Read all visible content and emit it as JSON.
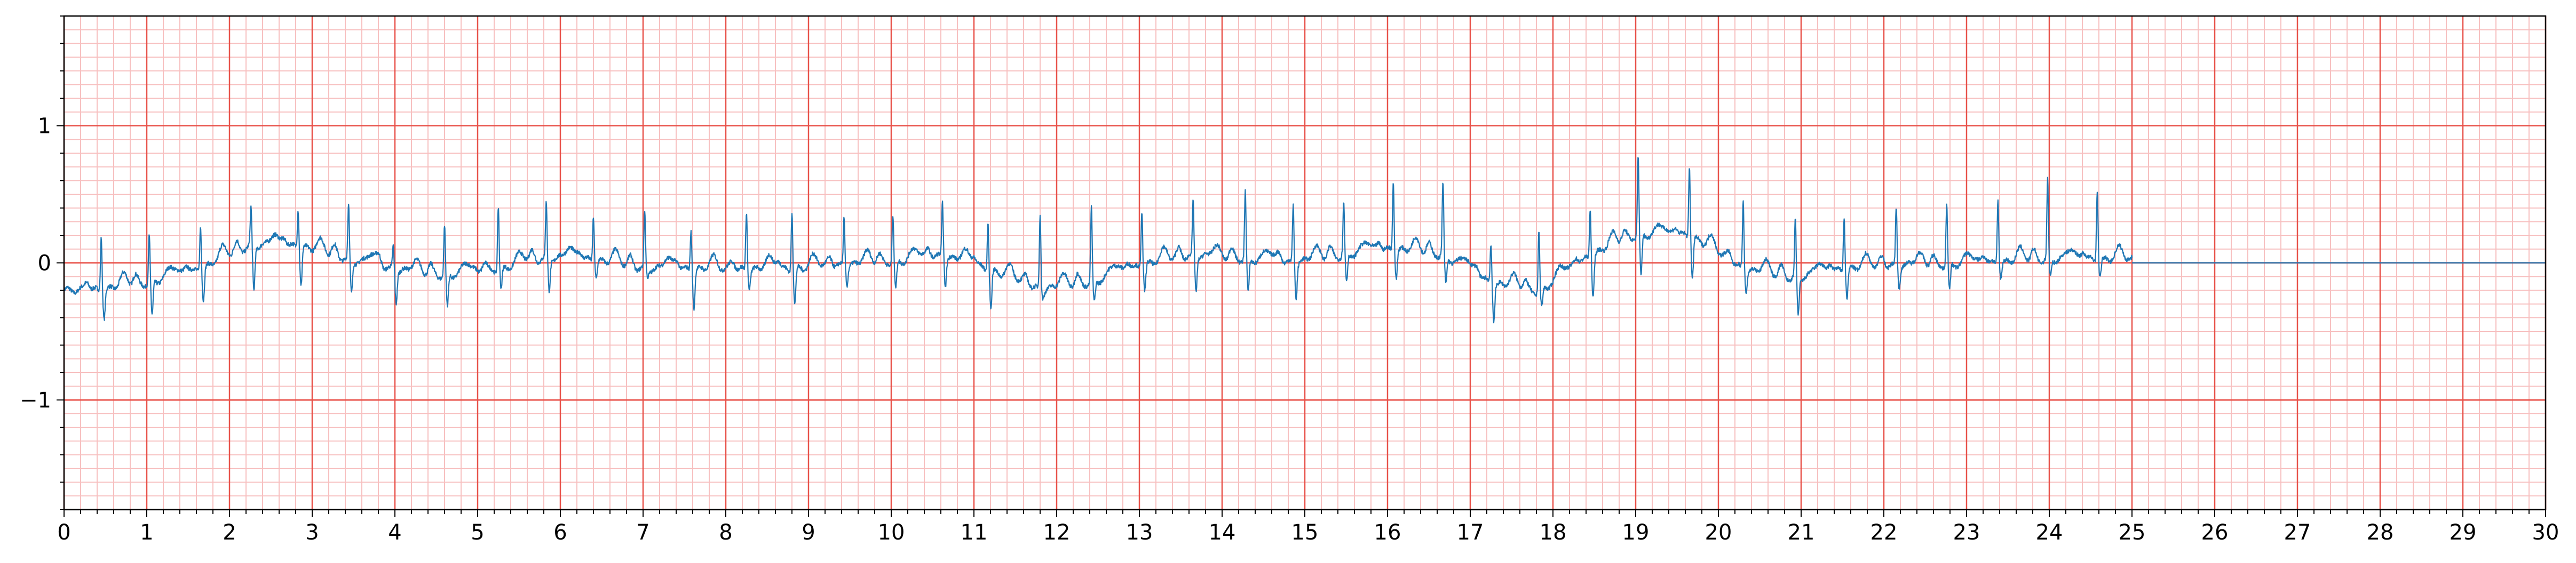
{
  "chart_data": {
    "type": "line",
    "title": "",
    "xlabel": "",
    "ylabel": "",
    "xlim": [
      0,
      30
    ],
    "ylim": [
      -1.8,
      1.8
    ],
    "x_ticks": [
      0,
      1,
      2,
      3,
      4,
      5,
      6,
      7,
      8,
      9,
      10,
      11,
      12,
      13,
      14,
      15,
      16,
      17,
      18,
      19,
      20,
      21,
      22,
      23,
      24,
      25,
      26,
      27,
      28,
      29,
      30
    ],
    "x_tick_labels": [
      "0",
      "1",
      "2",
      "3",
      "4",
      "5",
      "6",
      "7",
      "8",
      "9",
      "10",
      "11",
      "12",
      "13",
      "14",
      "15",
      "16",
      "17",
      "18",
      "19",
      "20",
      "21",
      "22",
      "23",
      "24",
      "25",
      "26",
      "27",
      "28",
      "29",
      "30"
    ],
    "y_ticks": [
      -1,
      0,
      1
    ],
    "y_tick_labels": [
      "−1",
      "0",
      "1"
    ],
    "grid": true,
    "grid_major_x_step": 1.0,
    "grid_minor_x_step": 0.2,
    "grid_major_y_step": 1.0,
    "grid_minor_y_step": 0.1,
    "colors": {
      "trace": "#1f77b4",
      "grid_major": "#e8524a",
      "grid_minor": "#f7c0c0",
      "axes": "#000000"
    },
    "signal_end": 25.0,
    "flat_until": 30.0,
    "series": [
      {
        "beats": [
          [
            0.45,
            -0.2,
            0.2,
            -0.4
          ],
          [
            1.03,
            -0.15,
            0.2,
            -0.4
          ],
          [
            1.65,
            -0.05,
            0.28,
            -0.28
          ],
          [
            2.26,
            0.12,
            0.4,
            -0.2
          ],
          [
            2.83,
            0.12,
            0.4,
            -0.15
          ],
          [
            3.44,
            0.02,
            0.42,
            -0.22
          ],
          [
            3.98,
            -0.05,
            0.12,
            -0.28
          ],
          [
            4.6,
            -0.1,
            0.27,
            -0.33
          ],
          [
            5.25,
            -0.05,
            0.42,
            -0.2
          ],
          [
            5.83,
            0.03,
            0.43,
            -0.2
          ],
          [
            6.4,
            0.02,
            0.35,
            -0.1
          ],
          [
            7.02,
            -0.05,
            0.37,
            -0.1
          ],
          [
            7.58,
            -0.05,
            0.25,
            -0.32
          ],
          [
            8.25,
            -0.05,
            0.38,
            -0.18
          ],
          [
            8.8,
            -0.05,
            0.38,
            -0.3
          ],
          [
            9.43,
            -0.02,
            0.33,
            -0.15
          ],
          [
            10.02,
            0.0,
            0.35,
            -0.2
          ],
          [
            10.62,
            0.05,
            0.45,
            -0.15
          ],
          [
            11.17,
            -0.05,
            0.3,
            -0.32
          ],
          [
            11.8,
            -0.2,
            0.35,
            -0.25
          ],
          [
            12.42,
            -0.15,
            0.4,
            -0.3
          ],
          [
            13.03,
            -0.02,
            0.4,
            -0.2
          ],
          [
            13.65,
            0.05,
            0.44,
            -0.2
          ],
          [
            14.28,
            0.02,
            0.52,
            -0.22
          ],
          [
            14.86,
            0.0,
            0.42,
            -0.25
          ],
          [
            15.47,
            0.05,
            0.43,
            -0.15
          ],
          [
            16.07,
            0.1,
            0.6,
            -0.1
          ],
          [
            16.67,
            0.05,
            0.58,
            -0.15
          ],
          [
            17.25,
            -0.15,
            0.15,
            -0.4
          ],
          [
            17.83,
            -0.22,
            0.24,
            -0.35
          ],
          [
            18.45,
            0.05,
            0.4,
            -0.25
          ],
          [
            19.03,
            0.2,
            0.77,
            -0.1
          ],
          [
            19.65,
            0.2,
            0.72,
            -0.1
          ],
          [
            20.3,
            -0.05,
            0.45,
            -0.2
          ],
          [
            20.93,
            -0.12,
            0.3,
            -0.38
          ],
          [
            21.52,
            -0.05,
            0.35,
            -0.25
          ],
          [
            22.15,
            -0.02,
            0.4,
            -0.18
          ],
          [
            22.76,
            -0.02,
            0.42,
            -0.2
          ],
          [
            23.38,
            0.0,
            0.47,
            -0.1
          ],
          [
            23.98,
            0.02,
            0.6,
            -0.1
          ],
          [
            24.58,
            0.02,
            0.55,
            -0.1
          ]
        ]
      }
    ]
  }
}
